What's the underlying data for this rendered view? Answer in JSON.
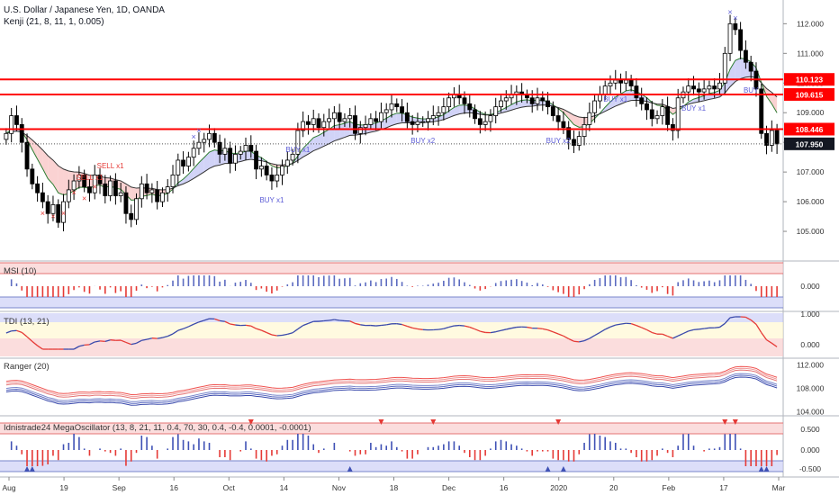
{
  "header": {
    "symbol_title": "U.S. Dollar / Japanese Yen, 1D, OANDA",
    "indicator_label": "Kenji (21, 8, 11, 1, 0.005)"
  },
  "colors": {
    "up_candle": "#ffffff",
    "down_candle": "#000000",
    "resistance_line": "#ff0000",
    "buy_marker": "#5b5bd6",
    "sell_marker": "#e53935",
    "band_fill_red": "#f9c7c7",
    "band_fill_blue": "#c5c8f5",
    "band_fill_yellow": "#fff6cc"
  },
  "chart_data": {
    "type": "candlestick",
    "price_axis": {
      "ticks": [
        "112.000",
        "111.000",
        "110.000",
        "109.000",
        "108.000",
        "107.000",
        "106.000",
        "105.000"
      ],
      "range": [
        104.0,
        112.8
      ]
    },
    "time_axis": {
      "ticks": [
        "Aug",
        "19",
        "Sep",
        "16",
        "Oct",
        "14",
        "Nov",
        "18",
        "Dec",
        "16",
        "2020",
        "20",
        "Feb",
        "17",
        "Mar"
      ]
    },
    "horizontal_levels": [
      {
        "label": "110.123",
        "value": 110.123,
        "color": "#ff0000"
      },
      {
        "label": "109.615",
        "value": 109.615,
        "color": "#ff0000"
      },
      {
        "label": "108.446",
        "value": 108.446,
        "color": "#ff0000"
      }
    ],
    "last_price": {
      "label": "107.950",
      "value": 107.95
    },
    "closes": [
      108.3,
      108.9,
      108.6,
      108.0,
      107.1,
      106.6,
      106.3,
      106.0,
      105.6,
      105.9,
      105.3,
      106.0,
      106.4,
      106.7,
      106.9,
      106.5,
      106.3,
      106.9,
      106.6,
      106.2,
      106.7,
      106.2,
      106.3,
      105.6,
      105.4,
      106.1,
      106.6,
      106.3,
      106.4,
      106.0,
      106.3,
      106.5,
      106.9,
      107.4,
      107.2,
      107.5,
      107.8,
      108.0,
      108.1,
      108.3,
      108.0,
      107.6,
      107.8,
      107.3,
      107.6,
      107.7,
      107.9,
      107.7,
      107.1,
      107.2,
      106.9,
      106.7,
      106.9,
      107.2,
      107.4,
      107.6,
      108.4,
      108.7,
      108.6,
      108.8,
      108.5,
      108.7,
      108.8,
      109.0,
      108.7,
      108.8,
      108.9,
      108.3,
      108.5,
      108.6,
      108.8,
      108.7,
      109.0,
      109.1,
      109.3,
      109.2,
      109.0,
      108.7,
      108.6,
      108.7,
      108.7,
      108.8,
      108.9,
      109.0,
      109.2,
      109.5,
      109.6,
      109.5,
      109.3,
      109.1,
      108.8,
      108.6,
      108.7,
      108.9,
      109.2,
      109.4,
      109.5,
      109.6,
      109.7,
      109.6,
      109.5,
      109.3,
      109.5,
      109.4,
      109.2,
      108.9,
      108.7,
      108.5,
      108.1,
      107.9,
      108.2,
      108.6,
      109.0,
      109.4,
      109.6,
      109.9,
      110.0,
      110.1,
      110.0,
      110.1,
      109.9,
      109.5,
      109.3,
      109.1,
      108.8,
      108.9,
      109.2,
      108.6,
      108.4,
      109.5,
      109.7,
      109.9,
      109.8,
      109.7,
      109.8,
      109.9,
      109.8,
      110.0,
      111.0,
      112.0,
      111.8,
      111.1,
      110.7,
      110.4,
      109.8,
      108.3,
      107.9,
      108.4,
      107.95
    ],
    "signals": [
      {
        "text": "SELL x1",
        "type": "sell"
      },
      {
        "text": "SELL x1",
        "type": "sell"
      },
      {
        "text": "BUY x1",
        "type": "buy"
      },
      {
        "text": "BUY x1",
        "type": "buy"
      },
      {
        "text": "BUY x2",
        "type": "buy"
      },
      {
        "text": "BUY x2",
        "type": "buy"
      },
      {
        "text": "BUY x1",
        "type": "buy"
      },
      {
        "text": "BUY x1",
        "type": "buy"
      },
      {
        "text": "BUY",
        "type": "buy"
      }
    ],
    "panels": [
      {
        "label": "MSI (10)",
        "ticks": [
          "0.000"
        ]
      },
      {
        "label": "TDI (13, 21)",
        "ticks": [
          "1.000",
          "0.000"
        ]
      },
      {
        "label": "Ranger (20)",
        "ticks": [
          "112.000",
          "108.000",
          "104.000"
        ]
      },
      {
        "label": "Idnistrade24 MegaOscillator (13, 8, 21, 11, 0.4, 70, 30, 0.4, -0.4, 0.0001, -0.0001)",
        "ticks": [
          "0.500",
          "0.000",
          "-0.500"
        ]
      }
    ]
  }
}
